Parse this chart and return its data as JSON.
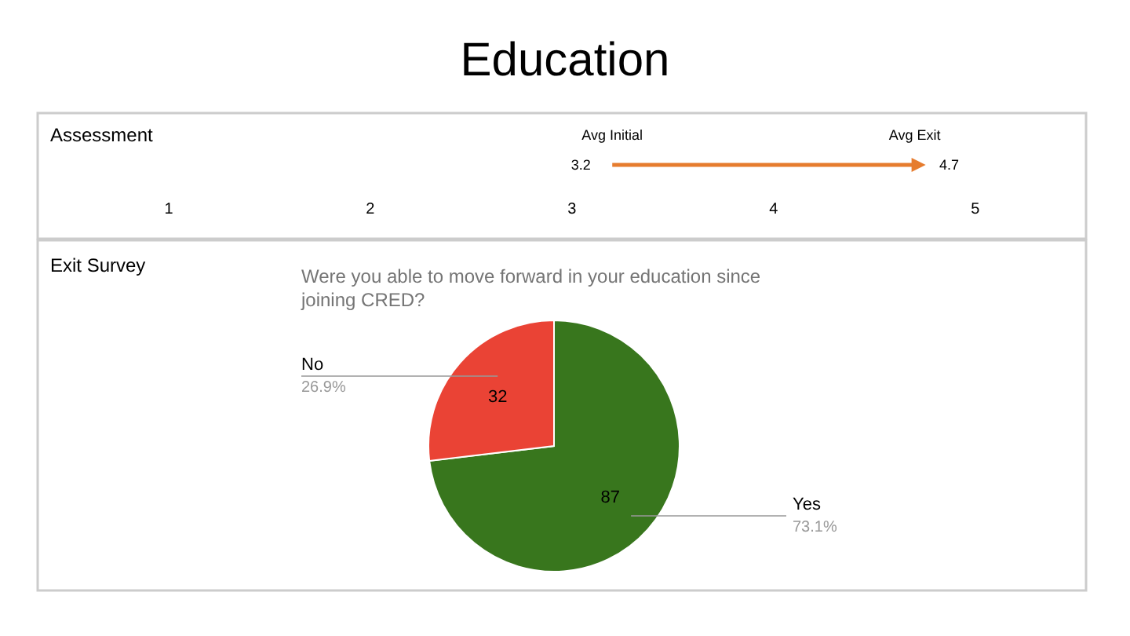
{
  "chart_data": [
    {
      "type": "bar",
      "orientation": "horizontal",
      "title": "Education",
      "subtitle": "Assessment",
      "categories": [
        null
      ],
      "base": [
        3.2
      ],
      "values": [
        1.5
      ],
      "color": "#e67c2e",
      "annotations": [
        "Avg Initial",
        "3.2",
        "Avg Exit",
        "4.7"
      ],
      "xlim": [
        0.35,
        5.55
      ],
      "xticks": [
        1,
        2,
        3,
        4,
        5
      ]
    },
    {
      "type": "pie",
      "title": "Exit Survey",
      "subtitle": "Were you able to move forward in your education since joining CRED?",
      "categories": [
        "Yes",
        "No"
      ],
      "values": [
        87,
        32
      ],
      "colors": [
        "#38761d",
        "#ea4335"
      ],
      "annotations": [
        "73.1%",
        "26.9%"
      ],
      "data_labels": true
    }
  ]
}
